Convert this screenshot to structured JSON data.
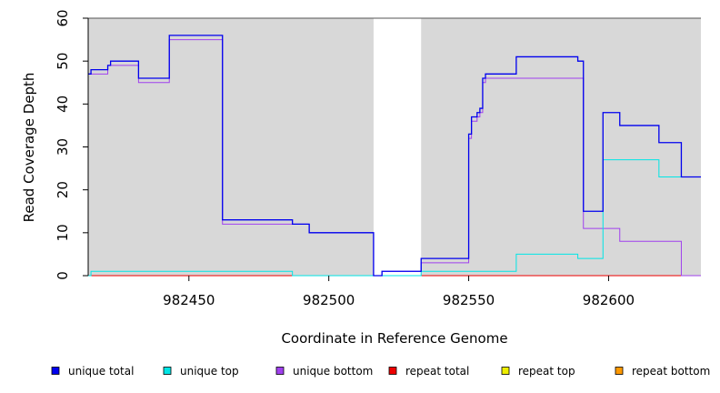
{
  "chart_data": {
    "type": "line",
    "step": true,
    "xlabel": "Coordinate in Reference Genome",
    "ylabel": "Read Coverage Depth",
    "xlim": [
      982414,
      982633
    ],
    "ylim": [
      0,
      60
    ],
    "xticks": [
      982450,
      982500,
      982550,
      982600
    ],
    "yticks": [
      0,
      10,
      20,
      30,
      40,
      50,
      60
    ],
    "shaded_regions": [
      [
        982414,
        982516
      ],
      [
        982533,
        982633
      ]
    ],
    "shade_color": "#d8d8d8",
    "legend_position": "bottom",
    "series": [
      {
        "name": "unique total",
        "color": "#0000ee",
        "points": [
          [
            982414,
            47
          ],
          [
            982415,
            48
          ],
          [
            982421,
            49
          ],
          [
            982422,
            50
          ],
          [
            982432,
            46
          ],
          [
            982443,
            56
          ],
          [
            982462,
            13
          ],
          [
            982487,
            12
          ],
          [
            982493,
            10
          ],
          [
            982516,
            0
          ],
          [
            982519,
            1
          ],
          [
            982533,
            4
          ],
          [
            982550,
            33
          ],
          [
            982551,
            37
          ],
          [
            982553,
            38
          ],
          [
            982554,
            39
          ],
          [
            982555,
            46
          ],
          [
            982556,
            47
          ],
          [
            982567,
            51
          ],
          [
            982589,
            50
          ],
          [
            982591,
            15
          ],
          [
            982598,
            38
          ],
          [
            982604,
            35
          ],
          [
            982618,
            31
          ],
          [
            982626,
            23
          ],
          [
            982633,
            23
          ]
        ]
      },
      {
        "name": "unique top",
        "color": "#00e5e5",
        "points": [
          [
            982414,
            0
          ],
          [
            982415,
            1
          ],
          [
            982487,
            0
          ],
          [
            982516,
            0
          ],
          [
            982533,
            1
          ],
          [
            982567,
            5
          ],
          [
            982589,
            4
          ],
          [
            982598,
            27
          ],
          [
            982618,
            23
          ],
          [
            982633,
            23
          ]
        ]
      },
      {
        "name": "unique bottom",
        "color": "#a040ee",
        "points": [
          [
            982414,
            47
          ],
          [
            982421,
            49
          ],
          [
            982432,
            45
          ],
          [
            982443,
            55
          ],
          [
            982462,
            12
          ],
          [
            982487,
            12
          ],
          [
            982493,
            10
          ],
          [
            982516,
            0
          ],
          [
            982519,
            1
          ],
          [
            982533,
            3
          ],
          [
            982550,
            32
          ],
          [
            982551,
            36
          ],
          [
            982553,
            37
          ],
          [
            982554,
            38
          ],
          [
            982555,
            45
          ],
          [
            982556,
            46
          ],
          [
            982567,
            46
          ],
          [
            982591,
            11
          ],
          [
            982604,
            8
          ],
          [
            982626,
            0
          ],
          [
            982633,
            0
          ]
        ]
      },
      {
        "name": "repeat total",
        "color": "#ee0000",
        "points": [
          [
            982414,
            0
          ],
          [
            982633,
            0
          ]
        ]
      },
      {
        "name": "repeat top",
        "color": "#eeee00",
        "points": [
          [
            982414,
            0
          ],
          [
            982633,
            0
          ]
        ]
      },
      {
        "name": "repeat bottom",
        "color": "#ff9900",
        "points": [
          [
            982414,
            0
          ],
          [
            982633,
            0
          ]
        ]
      }
    ]
  }
}
